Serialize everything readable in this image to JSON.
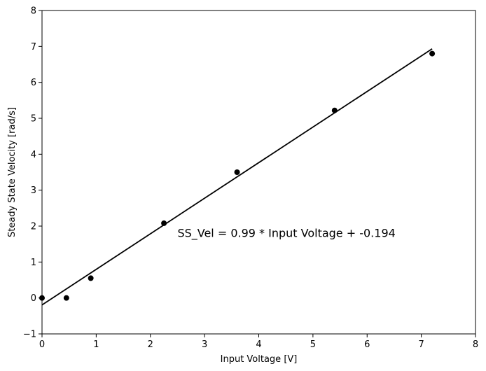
{
  "chart_data": {
    "type": "scatter",
    "xlabel": "Input Voltage [V]",
    "ylabel": "Steady State Velocity [rad/s]",
    "xlim": [
      0,
      8
    ],
    "ylim": [
      -1,
      8
    ],
    "xticks": [
      "0",
      "1",
      "2",
      "3",
      "4",
      "5",
      "6",
      "7",
      "8"
    ],
    "yticks": [
      "−1",
      "0",
      "1",
      "2",
      "3",
      "4",
      "5",
      "6",
      "7",
      "8"
    ],
    "grid": false,
    "points": {
      "x": [
        0,
        0.45,
        0.9,
        2.25,
        3.6,
        5.4,
        7.2
      ],
      "y": [
        0,
        0,
        0.55,
        2.08,
        3.5,
        5.22,
        6.8
      ],
      "color": "#000000"
    },
    "fit_line": {
      "slope": 0.99,
      "intercept": -0.194,
      "x_range": [
        0,
        7.2
      ],
      "color": "#000000"
    },
    "annotation": {
      "text": "SS_Vel = 0.99 * Input Voltage + -0.194",
      "x": 2.5,
      "y": 1.7
    }
  }
}
